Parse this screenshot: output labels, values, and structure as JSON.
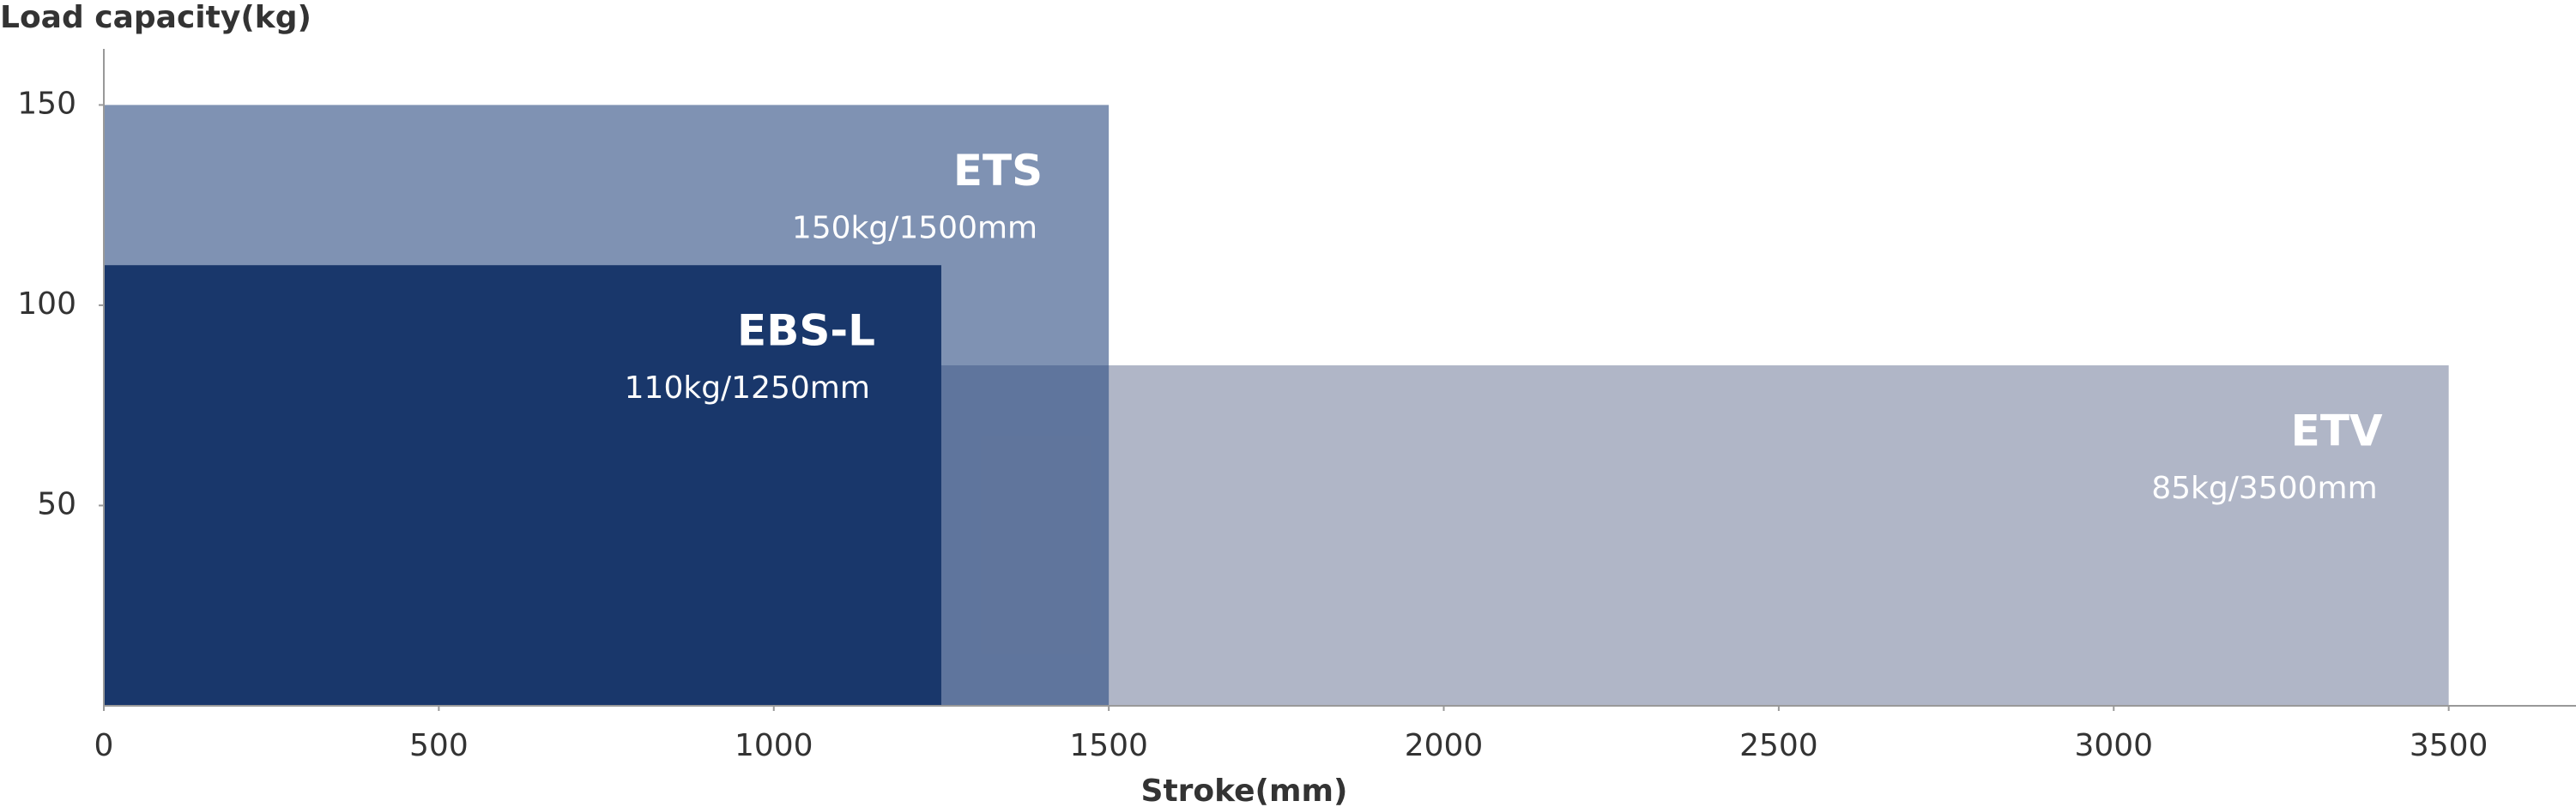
{
  "chart_data": {
    "type": "rect",
    "y_label": "Load capacity(kg)",
    "x_label": "Stroke(mm)",
    "xlim": [
      0,
      3690
    ],
    "xticks": [
      0,
      500,
      1000,
      1500,
      2000,
      2500,
      3000,
      3500
    ],
    "ylim": [
      0,
      164
    ],
    "yticks": [
      50,
      100,
      150
    ],
    "series": [
      {
        "name": "ETV",
        "color": "#b0b6c7",
        "opacity": 1,
        "load": 85,
        "stroke": 3500,
        "value_label": "85kg/3500mm"
      },
      {
        "name": "ETS",
        "color": "#2a4a80",
        "opacity": 0.6,
        "load": 150,
        "stroke": 1500,
        "value_label": "150kg/1500mm"
      },
      {
        "name": "EBS-L",
        "color": "#19376b",
        "opacity": 1,
        "load": 110,
        "stroke": 1250,
        "value_label": "110kg/1250mm"
      }
    ]
  }
}
